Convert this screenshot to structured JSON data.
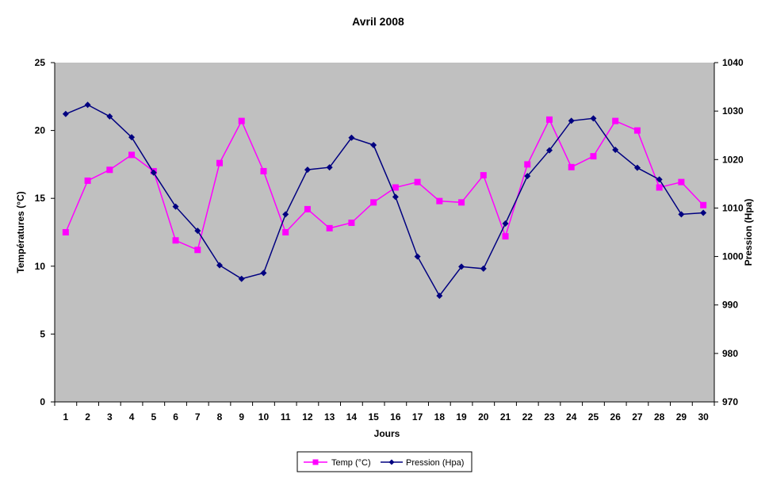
{
  "chart_data": {
    "type": "line",
    "title": "Avril 2008",
    "xlabel": "Jours",
    "ylabel": "Températures (°C)",
    "y2label": "Pression (Hpa)",
    "ylim": [
      0,
      25
    ],
    "y2lim": [
      970,
      1040
    ],
    "yticks": [
      "0",
      "5",
      "10",
      "15",
      "20",
      "25"
    ],
    "y2ticks": [
      "970",
      "980",
      "990",
      "1000",
      "1010",
      "1020",
      "1030",
      "1040"
    ],
    "grid": false,
    "legend_position": "bottom-center",
    "background": "#c0c0c0",
    "categories": [
      "1",
      "2",
      "3",
      "4",
      "5",
      "6",
      "7",
      "8",
      "9",
      "10",
      "11",
      "12",
      "13",
      "14",
      "15",
      "16",
      "17",
      "18",
      "19",
      "20",
      "21",
      "22",
      "23",
      "24",
      "25",
      "26",
      "27",
      "28",
      "29",
      "30"
    ],
    "series": [
      {
        "name": "Temp (°C)",
        "axis": "left",
        "color": "#ff00ff",
        "marker": "square",
        "values": [
          12.5,
          16.3,
          17.1,
          18.2,
          17.0,
          11.9,
          11.2,
          17.6,
          20.7,
          17.0,
          12.5,
          14.2,
          12.8,
          13.2,
          14.7,
          15.8,
          16.2,
          14.8,
          14.7,
          16.7,
          12.2,
          17.5,
          20.8,
          17.3,
          18.1,
          20.7,
          20.0,
          15.8,
          16.2,
          14.5
        ]
      },
      {
        "name": "Pression (Hpa)",
        "axis": "right",
        "color": "#000080",
        "marker": "diamond",
        "values": [
          1029.4,
          1031.3,
          1028.9,
          1024.6,
          1017.3,
          1010.3,
          1005.3,
          998.2,
          995.4,
          996.6,
          1008.7,
          1017.9,
          1018.4,
          1024.5,
          1023.0,
          1012.3,
          1000.0,
          991.9,
          997.9,
          997.5,
          1006.8,
          1016.6,
          1021.9,
          1028.0,
          1028.5,
          1022.0,
          1018.3,
          1015.9,
          1008.7,
          1009.0
        ]
      }
    ]
  }
}
